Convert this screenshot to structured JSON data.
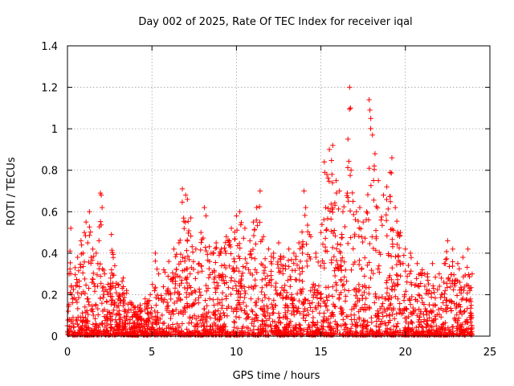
{
  "chart_data": {
    "type": "scatter",
    "title": "Day 002 of 2025, Rate Of TEC Index for receiver iqal",
    "xlabel": "GPS time / hours",
    "ylabel": "ROTI / TECUs",
    "xlim": [
      0,
      25
    ],
    "ylim": [
      0,
      1.4
    ],
    "xticks": [
      0,
      5,
      10,
      15,
      20,
      25
    ],
    "yticks": [
      0,
      0.2,
      0.4,
      0.6,
      0.8,
      1,
      1.2,
      1.4
    ],
    "xtick_labels": [
      "0",
      "5",
      "10",
      "15",
      "20",
      "25"
    ],
    "ytick_labels": [
      "0",
      "0.2",
      "0.4",
      "0.6",
      "0.8",
      "1",
      "1.2",
      "1.4"
    ],
    "grid": true,
    "marker": "plus",
    "color": "#ff0000",
    "envelope_note": "approximate upper envelope of the point cloud by hour",
    "series": [
      {
        "values": [
          [
            0.0,
            0.05
          ],
          [
            0.05,
            0.12
          ],
          [
            0.1,
            0.3
          ],
          [
            0.15,
            0.41
          ],
          [
            0.2,
            0.52
          ],
          [
            0.25,
            0.2
          ],
          [
            0.3,
            0.18
          ],
          [
            0.45,
            0.33
          ],
          [
            0.6,
            0.38
          ],
          [
            0.8,
            0.46
          ],
          [
            1.0,
            0.5
          ],
          [
            1.1,
            0.55
          ],
          [
            1.2,
            0.45
          ],
          [
            1.3,
            0.6
          ],
          [
            1.5,
            0.42
          ],
          [
            1.7,
            0.4
          ],
          [
            1.8,
            0.35
          ],
          [
            1.95,
            0.69
          ],
          [
            2.0,
            0.68
          ],
          [
            2.05,
            0.62
          ],
          [
            2.2,
            0.3
          ],
          [
            2.4,
            0.25
          ],
          [
            2.6,
            0.49
          ],
          [
            2.8,
            0.34
          ],
          [
            3.0,
            0.25
          ],
          [
            3.3,
            0.28
          ],
          [
            3.5,
            0.22
          ],
          [
            3.8,
            0.16
          ],
          [
            4.0,
            0.14
          ],
          [
            4.3,
            0.15
          ],
          [
            4.6,
            0.18
          ],
          [
            4.9,
            0.2
          ],
          [
            5.2,
            0.4
          ],
          [
            5.4,
            0.3
          ],
          [
            5.7,
            0.32
          ],
          [
            6.0,
            0.36
          ],
          [
            6.3,
            0.42
          ],
          [
            6.6,
            0.45
          ],
          [
            6.8,
            0.71
          ],
          [
            7.0,
            0.68
          ],
          [
            7.1,
            0.66
          ],
          [
            7.3,
            0.57
          ],
          [
            7.6,
            0.42
          ],
          [
            7.9,
            0.5
          ],
          [
            8.1,
            0.62
          ],
          [
            8.2,
            0.58
          ],
          [
            8.5,
            0.4
          ],
          [
            8.8,
            0.45
          ],
          [
            9.1,
            0.42
          ],
          [
            9.4,
            0.48
          ],
          [
            9.7,
            0.52
          ],
          [
            10.0,
            0.58
          ],
          [
            10.2,
            0.6
          ],
          [
            10.5,
            0.52
          ],
          [
            10.8,
            0.46
          ],
          [
            11.0,
            0.55
          ],
          [
            11.2,
            0.62
          ],
          [
            11.4,
            0.7
          ],
          [
            11.6,
            0.48
          ],
          [
            11.9,
            0.42
          ],
          [
            12.2,
            0.4
          ],
          [
            12.5,
            0.45
          ],
          [
            12.8,
            0.38
          ],
          [
            13.1,
            0.42
          ],
          [
            13.4,
            0.4
          ],
          [
            13.7,
            0.45
          ],
          [
            14.0,
            0.7
          ],
          [
            14.1,
            0.62
          ],
          [
            14.4,
            0.48
          ],
          [
            14.7,
            0.4
          ],
          [
            15.0,
            0.5
          ],
          [
            15.2,
            0.84
          ],
          [
            15.35,
            0.78
          ],
          [
            15.5,
            0.9
          ],
          [
            15.7,
            0.92
          ],
          [
            15.9,
            0.75
          ],
          [
            16.1,
            0.7
          ],
          [
            16.3,
            0.6
          ],
          [
            16.6,
            0.95
          ],
          [
            16.7,
            1.2
          ],
          [
            16.75,
            1.1
          ],
          [
            16.9,
            0.65
          ],
          [
            17.1,
            0.6
          ],
          [
            17.3,
            0.62
          ],
          [
            17.5,
            0.55
          ],
          [
            17.7,
            0.6
          ],
          [
            17.85,
            1.14
          ],
          [
            17.9,
            1.09
          ],
          [
            17.95,
            1.05
          ],
          [
            18.05,
            0.97
          ],
          [
            18.2,
            0.88
          ],
          [
            18.4,
            0.75
          ],
          [
            18.7,
            0.68
          ],
          [
            18.9,
            0.72
          ],
          [
            19.1,
            0.79
          ],
          [
            19.2,
            0.86
          ],
          [
            19.4,
            0.62
          ],
          [
            19.7,
            0.5
          ],
          [
            20.0,
            0.42
          ],
          [
            20.3,
            0.4
          ],
          [
            20.7,
            0.35
          ],
          [
            21.0,
            0.32
          ],
          [
            21.3,
            0.3
          ],
          [
            21.6,
            0.35
          ],
          [
            22.0,
            0.3
          ],
          [
            22.3,
            0.35
          ],
          [
            22.5,
            0.46
          ],
          [
            22.8,
            0.42
          ],
          [
            23.1,
            0.35
          ],
          [
            23.4,
            0.38
          ],
          [
            23.7,
            0.42
          ],
          [
            23.95,
            0.3
          ]
        ]
      }
    ]
  }
}
